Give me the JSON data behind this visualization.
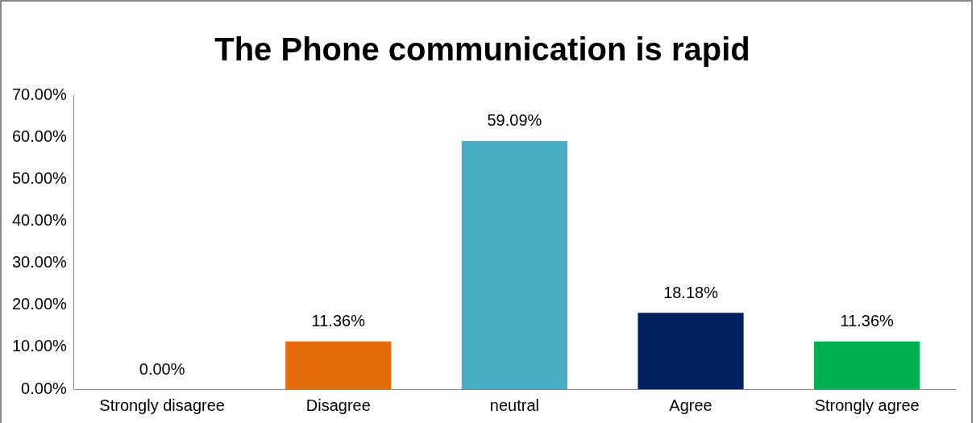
{
  "chart_data": {
    "type": "bar",
    "title": "The Phone communication is rapid",
    "categories": [
      "Strongly disagree",
      "Disagree",
      "neutral",
      "Agree",
      "Strongly agree"
    ],
    "values": [
      0,
      11.36,
      59.09,
      18.18,
      11.36
    ],
    "colors": [
      "#4f81bd",
      "#e46c0a",
      "#4bacc6",
      "#002060",
      "#00b050"
    ],
    "value_labels": [
      "0.00%",
      "11.36%",
      "59.09%",
      "18.18%",
      "11.36%"
    ],
    "ylim": [
      0,
      70
    ],
    "yticks": [
      {
        "value": 0,
        "label": "0.00%"
      },
      {
        "value": 10,
        "label": "10.00%"
      },
      {
        "value": 20,
        "label": "20.00%"
      },
      {
        "value": 30,
        "label": "30.00%"
      },
      {
        "value": 40,
        "label": "40.00%"
      },
      {
        "value": 50,
        "label": "50.00%"
      },
      {
        "value": 60,
        "label": "60.00%"
      },
      {
        "value": 70,
        "label": "70.00%"
      }
    ],
    "grid": false,
    "legend": false
  }
}
